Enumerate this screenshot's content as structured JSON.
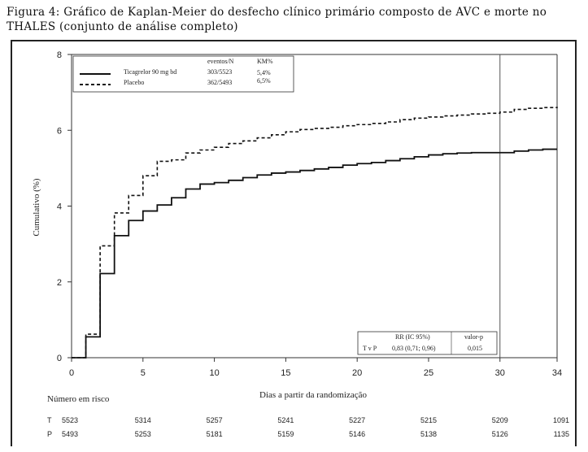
{
  "caption": {
    "line1": "Figura 4: Gráfico de Kaplan-Meier do desfecho clínico primário composto de AVC e morte no",
    "line2": "THALES (conjunto de análise completo)"
  },
  "chart_data": {
    "type": "line",
    "title": "",
    "xlabel": "Dias a partir da randomização",
    "ylabel": "Cumulativo (%)",
    "xlim": [
      0,
      34
    ],
    "ylim": [
      0,
      8
    ],
    "x_ticks": [
      0,
      5,
      10,
      15,
      20,
      25,
      30,
      34
    ],
    "y_ticks": [
      0,
      2,
      4,
      6,
      8
    ],
    "reference_line_x": 30,
    "legend": {
      "placement": "top-left",
      "header_events": "eventos/N",
      "header_km": "KM%",
      "entries": [
        {
          "label": "Ticagrelor 90 mg bd",
          "events": "303/5523",
          "km": "5,4%",
          "style": "solid"
        },
        {
          "label": "Placebo",
          "events": "362/5493",
          "km": "6,5%",
          "style": "dashed"
        }
      ]
    },
    "series": [
      {
        "name": "Ticagrelor 90 mg bd",
        "style": "solid",
        "x": [
          0,
          1,
          2,
          3,
          4,
          5,
          6,
          7,
          8,
          9,
          10,
          11,
          12,
          13,
          14,
          15,
          16,
          17,
          18,
          19,
          20,
          21,
          22,
          23,
          24,
          25,
          26,
          27,
          28,
          29,
          30,
          31,
          32,
          33,
          34
        ],
        "y": [
          0,
          0.55,
          2.22,
          3.22,
          3.62,
          3.87,
          4.03,
          4.22,
          4.45,
          4.58,
          4.62,
          4.68,
          4.75,
          4.82,
          4.87,
          4.9,
          4.94,
          4.98,
          5.02,
          5.08,
          5.12,
          5.15,
          5.2,
          5.25,
          5.3,
          5.35,
          5.38,
          5.4,
          5.41,
          5.41,
          5.41,
          5.45,
          5.48,
          5.5,
          5.5
        ]
      },
      {
        "name": "Placebo",
        "style": "dashed",
        "x": [
          0,
          1,
          2,
          3,
          4,
          5,
          6,
          7,
          8,
          9,
          10,
          11,
          12,
          13,
          14,
          15,
          16,
          17,
          18,
          19,
          20,
          21,
          22,
          23,
          24,
          25,
          26,
          27,
          28,
          29,
          30,
          31,
          32,
          33,
          34
        ],
        "y": [
          0,
          0.62,
          2.95,
          3.82,
          4.28,
          4.8,
          5.18,
          5.22,
          5.4,
          5.48,
          5.55,
          5.65,
          5.72,
          5.8,
          5.88,
          5.96,
          6.02,
          6.05,
          6.08,
          6.12,
          6.15,
          6.18,
          6.22,
          6.28,
          6.32,
          6.35,
          6.38,
          6.4,
          6.43,
          6.45,
          6.48,
          6.55,
          6.58,
          6.6,
          6.62
        ]
      }
    ],
    "stats_box": {
      "header_hr": "RR (IC 95%)",
      "header_p": "valor-p",
      "row_label": "T v P",
      "hr": "0,83 (0,71; 0,96)",
      "p": "0,015"
    },
    "risk_table": {
      "title": "Número em risco",
      "days": [
        0,
        5,
        10,
        15,
        20,
        25,
        30,
        34
      ],
      "rows": [
        {
          "label": "T",
          "values": [
            "5523",
            "5314",
            "5257",
            "5241",
            "5227",
            "5215",
            "5209",
            "1091"
          ]
        },
        {
          "label": "P",
          "values": [
            "5493",
            "5253",
            "5181",
            "5159",
            "5146",
            "5138",
            "5126",
            "1135"
          ]
        }
      ]
    }
  }
}
